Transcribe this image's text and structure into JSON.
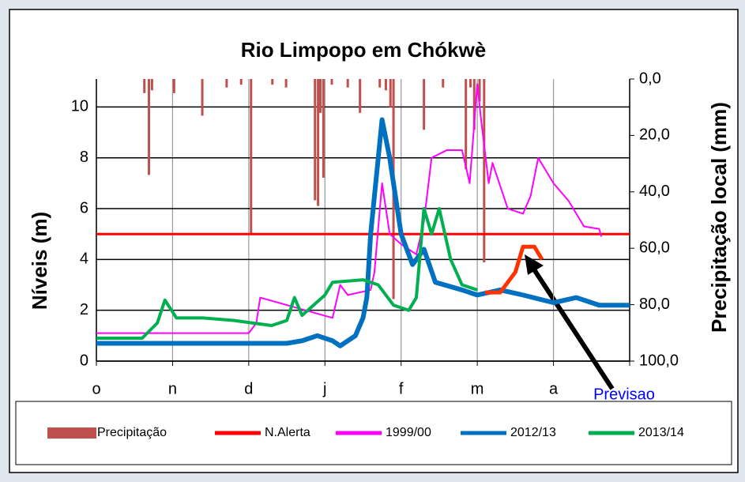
{
  "chart_data": {
    "type": "line",
    "title": "Rio Limpopo em Chókwè",
    "y_label": "Níveis (m)",
    "y2_label": "Precipitação local (mm)",
    "xlim": [
      0,
      7
    ],
    "xticks": [
      {
        "value": 0,
        "label": "o"
      },
      {
        "value": 1,
        "label": "n"
      },
      {
        "value": 2,
        "label": "d"
      },
      {
        "value": 3,
        "label": "j"
      },
      {
        "value": 4,
        "label": "f"
      },
      {
        "value": 5,
        "label": "m"
      },
      {
        "value": 6,
        "label": "a"
      },
      {
        "value": 7,
        "label": ""
      }
    ],
    "ylim": [
      0,
      11.1
    ],
    "yticks": [
      0,
      2,
      4,
      6,
      8,
      10
    ],
    "y2lim": [
      0,
      100
    ],
    "y2_inverted": true,
    "y2ticks": [
      {
        "value": 0,
        "label": "0,0"
      },
      {
        "value": 20,
        "label": "20,0"
      },
      {
        "value": 40,
        "label": "40,0"
      },
      {
        "value": 60,
        "label": "60,0"
      },
      {
        "value": 80,
        "label": "80,0"
      },
      {
        "value": 100,
        "label": "100,0"
      }
    ],
    "grid": true,
    "legend": "bottom",
    "series": [
      {
        "name": "Precipitação",
        "type": "bar",
        "axis": "y2",
        "color": "#c0504d",
        "x": [
          0.63,
          0.69,
          0.73,
          1.02,
          1.39,
          1.71,
          1.9,
          2.03,
          2.31,
          2.49,
          2.87,
          2.91,
          2.94,
          2.98,
          3.09,
          3.3,
          3.46,
          3.72,
          3.8,
          3.86,
          3.9,
          4.3,
          4.55,
          4.85,
          4.91,
          4.96,
          5.03,
          5.09
        ],
        "values": [
          5,
          34,
          4,
          5,
          13,
          3,
          2,
          55,
          2,
          3,
          43,
          45,
          12,
          35,
          2,
          3,
          12,
          3,
          4,
          10,
          78,
          18,
          3,
          32,
          3,
          18,
          8,
          65
        ]
      },
      {
        "name": "N.Alerta",
        "type": "line",
        "color": "#ff0000",
        "width": 3,
        "x": [
          0,
          7
        ],
        "values": [
          5,
          5
        ]
      },
      {
        "name": "1999/00",
        "type": "line",
        "color": "#ff00ff",
        "width": 2,
        "x": [
          0,
          1.3,
          2,
          2.1,
          2.15,
          3.1,
          3.2,
          3.3,
          3.6,
          3.65,
          3.75,
          3.85,
          4.0,
          4.2,
          4.3,
          4.4,
          4.6,
          4.8,
          4.9,
          5.0,
          5.05,
          5.15,
          5.2,
          5.4,
          5.6,
          5.7,
          5.8,
          6.0,
          6.2,
          6.4,
          6.6,
          6.63
        ],
        "values": [
          1.1,
          1.1,
          1.1,
          1.5,
          2.5,
          1.7,
          3,
          2.6,
          2.8,
          3.5,
          7,
          5,
          4.6,
          4.2,
          5.5,
          8,
          8.3,
          8.3,
          7,
          10.9,
          9.5,
          7,
          7.8,
          6,
          5.8,
          6.5,
          8,
          7,
          6.3,
          5.3,
          5.2,
          4.9
        ]
      },
      {
        "name": "2012/13",
        "type": "line",
        "color": "#0070c0",
        "width": 6,
        "x": [
          0,
          2.5,
          2.7,
          2.9,
          3.1,
          3.2,
          3.4,
          3.5,
          3.55,
          3.6,
          3.75,
          3.85,
          4.0,
          4.15,
          4.3,
          4.45,
          4.8,
          5.0,
          5.3,
          5.6,
          6.0,
          6.3,
          6.6,
          7
        ],
        "values": [
          0.7,
          0.7,
          0.8,
          1,
          0.8,
          0.6,
          1,
          1.7,
          2.5,
          5,
          9.5,
          8,
          5,
          3.8,
          4.4,
          3.1,
          2.8,
          2.6,
          2.8,
          2.6,
          2.3,
          2.5,
          2.2,
          2.2
        ]
      },
      {
        "name": "2013/14",
        "type": "line",
        "color": "#00b050",
        "width": 4,
        "x": [
          0,
          0.6,
          0.8,
          0.9,
          1.05,
          1.4,
          1.8,
          2.3,
          2.5,
          2.6,
          2.7,
          3.0,
          3.1,
          3.5,
          3.7,
          3.9,
          4.1,
          4.2,
          4.3,
          4.4,
          4.5,
          4.65,
          4.8,
          5.0
        ],
        "values": [
          0.9,
          0.9,
          1.5,
          2.4,
          1.7,
          1.7,
          1.6,
          1.4,
          1.6,
          2.5,
          1.8,
          2.6,
          3.1,
          3.2,
          3,
          2.2,
          2,
          2.5,
          6,
          5,
          6,
          4,
          3,
          2.8
        ]
      }
    ],
    "forecast": {
      "color": "#ff3300",
      "x": [
        5.1,
        5.3,
        5.5,
        5.6,
        5.75,
        5.85
      ],
      "values": [
        2.7,
        2.7,
        3.5,
        4.5,
        4.5,
        4
      ]
    },
    "annotation": "Previsao"
  }
}
